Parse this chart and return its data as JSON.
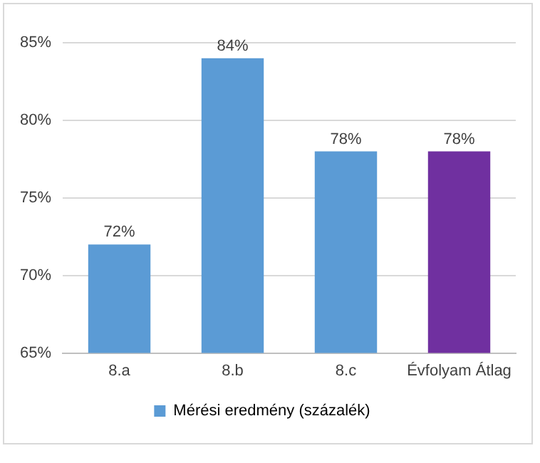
{
  "chart_data": {
    "type": "bar",
    "categories": [
      "8.a",
      "8.b",
      "8.c",
      "Évfolyam Átlag"
    ],
    "series": [
      {
        "name": "Mérési eredmény (százalék)",
        "color": "#5b9bd5",
        "colors": [
          "#5b9bd5",
          "#5b9bd5",
          "#5b9bd5",
          "#7030a0"
        ],
        "values": [
          72,
          84,
          78,
          78
        ],
        "value_labels": [
          "72%",
          "84%",
          "78%",
          "78%"
        ]
      }
    ],
    "ylim": [
      65,
      85
    ],
    "yticks": [
      {
        "value": 65,
        "label": "65%"
      },
      {
        "value": 70,
        "label": "70%"
      },
      {
        "value": 75,
        "label": "75%"
      },
      {
        "value": 80,
        "label": "80%"
      },
      {
        "value": 85,
        "label": "85%"
      }
    ],
    "grid": "y",
    "legend": "bottom"
  }
}
